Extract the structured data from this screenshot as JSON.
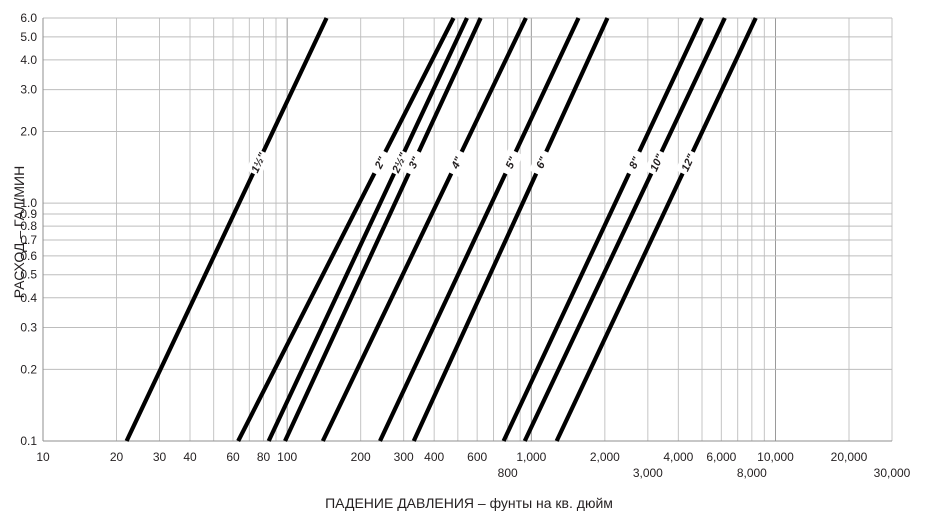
{
  "chart_data": {
    "type": "line",
    "xlabel": "ПАДЕНИЕ ДАВЛЕНИЯ – фунты на кв. дюйм",
    "ylabel": "РАСХОД – ГАЛ/МИН",
    "x_scale": "log",
    "y_scale": "log",
    "xlim": [
      10,
      30000
    ],
    "ylim": [
      0.1,
      6.0
    ],
    "grid": true,
    "x_ticks": [
      {
        "value": 10,
        "label": "10",
        "row": 0
      },
      {
        "value": 20,
        "label": "20",
        "row": 0
      },
      {
        "value": 30,
        "label": "30",
        "row": 0
      },
      {
        "value": 40,
        "label": "40",
        "row": 0
      },
      {
        "value": 60,
        "label": "60",
        "row": 0
      },
      {
        "value": 80,
        "label": "80",
        "row": 0
      },
      {
        "value": 100,
        "label": "100",
        "row": 0
      },
      {
        "value": 200,
        "label": "200",
        "row": 0
      },
      {
        "value": 300,
        "label": "300",
        "row": 0
      },
      {
        "value": 400,
        "label": "400",
        "row": 0
      },
      {
        "value": 600,
        "label": "600",
        "row": 0
      },
      {
        "value": 800,
        "label": "800",
        "row": 1
      },
      {
        "value": 1000,
        "label": "1,000",
        "row": 0
      },
      {
        "value": 2000,
        "label": "2,000",
        "row": 0
      },
      {
        "value": 3000,
        "label": "3,000",
        "row": 1
      },
      {
        "value": 4000,
        "label": "4,000",
        "row": 0
      },
      {
        "value": 6000,
        "label": "6,000",
        "row": 0
      },
      {
        "value": 8000,
        "label": "8,000",
        "row": 1
      },
      {
        "value": 10000,
        "label": "10,000",
        "row": 0
      },
      {
        "value": 20000,
        "label": "20,000",
        "row": 0
      },
      {
        "value": 30000,
        "label": "30,000",
        "row": 1
      }
    ],
    "y_ticks": [
      {
        "value": 0.1,
        "label": "0.1"
      },
      {
        "value": 0.2,
        "label": "0.2"
      },
      {
        "value": 0.3,
        "label": "0.3"
      },
      {
        "value": 0.4,
        "label": "0.4"
      },
      {
        "value": 0.5,
        "label": "0.5"
      },
      {
        "value": 0.6,
        "label": "0.6"
      },
      {
        "value": 0.7,
        "label": "0.7"
      },
      {
        "value": 0.8,
        "label": "0.8"
      },
      {
        "value": 0.9,
        "label": "0.9"
      },
      {
        "value": 1.0,
        "label": "1.0"
      },
      {
        "value": 2.0,
        "label": "2.0"
      },
      {
        "value": 3.0,
        "label": "3.0"
      },
      {
        "value": 4.0,
        "label": "4.0"
      },
      {
        "value": 5.0,
        "label": "5.0"
      },
      {
        "value": 6.0,
        "label": "6.0"
      }
    ],
    "series": [
      {
        "name": "1½\"",
        "x": [
          22,
          145
        ],
        "y": [
          0.1,
          6.0
        ],
        "label_at": 1.48
      },
      {
        "name": "2\"",
        "x": [
          63,
          480
        ],
        "y": [
          0.1,
          6.0
        ],
        "label_at": 1.48
      },
      {
        "name": "2½\"",
        "x": [
          84,
          545
        ],
        "y": [
          0.1,
          6.0
        ],
        "label_at": 1.48
      },
      {
        "name": "3\"",
        "x": [
          98,
          620
        ],
        "y": [
          0.1,
          6.0
        ],
        "label_at": 1.48
      },
      {
        "name": "4\"",
        "x": [
          140,
          950
        ],
        "y": [
          0.1,
          6.0
        ],
        "label_at": 1.48
      },
      {
        "name": "5\"",
        "x": [
          240,
          1560
        ],
        "y": [
          0.1,
          6.0
        ],
        "label_at": 1.48
      },
      {
        "name": "6\"",
        "x": [
          330,
          2050
        ],
        "y": [
          0.1,
          6.0
        ],
        "label_at": 1.48
      },
      {
        "name": "8\"",
        "x": [
          770,
          5000
        ],
        "y": [
          0.1,
          6.0
        ],
        "label_at": 1.48
      },
      {
        "name": "10\"",
        "x": [
          940,
          6200
        ],
        "y": [
          0.1,
          6.0
        ],
        "label_at": 1.48
      },
      {
        "name": "12\"",
        "x": [
          1270,
          8300
        ],
        "y": [
          0.1,
          6.0
        ],
        "label_at": 1.48
      }
    ]
  }
}
